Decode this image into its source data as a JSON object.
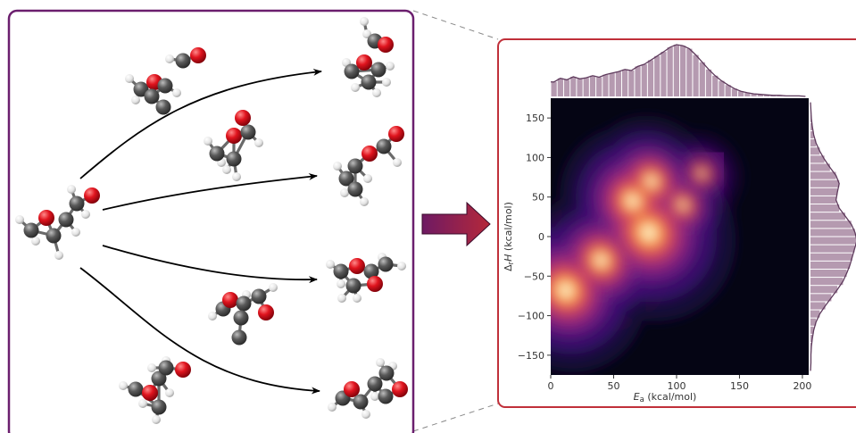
{
  "colors": {
    "left_panel_border": "#6b1f6e",
    "right_panel_border": "#c0303a",
    "arrow_start": "#6e1a63",
    "arrow_end": "#b5283a",
    "carbon": "#5a5a5a",
    "oxygen": "#e0141e",
    "hydrogen": "#e4e4e4",
    "kde_background": "#050514",
    "histogram": "#b59ab0",
    "kde_line": "#5e3a5c"
  },
  "chart_data": {
    "type": "heatmap",
    "xlabel_main": "E",
    "xlabel_sub": "a",
    "xlabel_unit": " (kcal/mol)",
    "ylabel_main": "Δ",
    "ylabel_sub": "r",
    "ylabel_var": "H",
    "ylabel_unit": " (kcal/mol)",
    "xlim": [
      0,
      205
    ],
    "ylim": [
      -175,
      175
    ],
    "xticks": [
      0,
      50,
      100,
      150,
      200
    ],
    "yticks": [
      -150,
      -100,
      -50,
      0,
      50,
      100,
      150
    ],
    "density_centers": [
      {
        "x": 78,
        "y": 5,
        "weight": 1.0
      },
      {
        "x": 65,
        "y": 45,
        "weight": 0.7
      },
      {
        "x": 80,
        "y": 70,
        "weight": 0.55
      },
      {
        "x": 40,
        "y": -30,
        "weight": 0.65
      },
      {
        "x": 12,
        "y": -68,
        "weight": 0.85
      },
      {
        "x": 105,
        "y": 40,
        "weight": 0.35
      },
      {
        "x": 120,
        "y": 80,
        "weight": 0.25
      }
    ],
    "x_marginal": [
      0.28,
      0.35,
      0.32,
      0.38,
      0.34,
      0.36,
      0.4,
      0.37,
      0.42,
      0.45,
      0.48,
      0.52,
      0.5,
      0.58,
      0.62,
      0.7,
      0.78,
      0.86,
      0.95,
      1.0,
      0.98,
      0.92,
      0.8,
      0.66,
      0.52,
      0.4,
      0.3,
      0.22,
      0.15,
      0.1,
      0.07,
      0.05,
      0.04,
      0.03,
      0.02,
      0.02,
      0.01,
      0.01,
      0.01,
      0.0
    ],
    "y_marginal": [
      0.0,
      0.01,
      0.01,
      0.02,
      0.04,
      0.07,
      0.12,
      0.2,
      0.32,
      0.45,
      0.58,
      0.7,
      0.78,
      0.85,
      0.9,
      0.95,
      1.0,
      0.96,
      0.88,
      0.75,
      0.62,
      0.55,
      0.58,
      0.62,
      0.55,
      0.42,
      0.3,
      0.2,
      0.12,
      0.07,
      0.04,
      0.02,
      0.01,
      0.0
    ]
  }
}
